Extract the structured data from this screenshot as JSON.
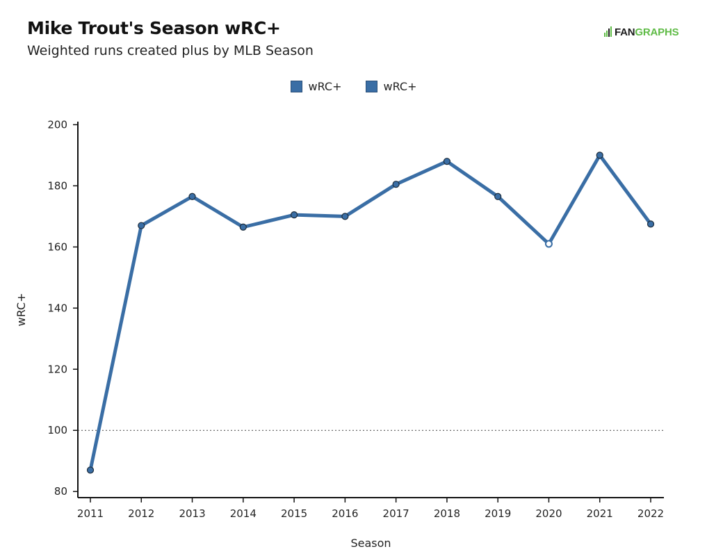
{
  "chart_data": {
    "type": "line",
    "title": "Mike Trout's Season wRC+",
    "subtitle": "Weighted runs created plus by MLB Season",
    "xlabel": "Season",
    "ylabel": "wRC+",
    "ylim": [
      78,
      201
    ],
    "yticks": [
      80,
      100,
      120,
      140,
      160,
      180,
      200
    ],
    "x": [
      2011,
      2012,
      2013,
      2014,
      2015,
      2016,
      2017,
      2018,
      2019,
      2020,
      2021,
      2022
    ],
    "series": [
      {
        "name": "wRC+",
        "values": [
          87,
          167,
          176.5,
          166.5,
          170.5,
          170,
          180.5,
          188,
          176.5,
          161,
          190,
          167.5
        ],
        "color": "#3a6ea5",
        "hollow_points": [
          2020
        ]
      }
    ],
    "reference_line": {
      "y": 100,
      "style": "dotted"
    },
    "legend": {
      "position": "top-center",
      "entries": [
        "wRC+",
        "wRC+"
      ]
    },
    "grid": false
  },
  "brand": {
    "fan": "FAN",
    "graphs": "GRAPHS",
    "accent": "#5fbb46"
  }
}
